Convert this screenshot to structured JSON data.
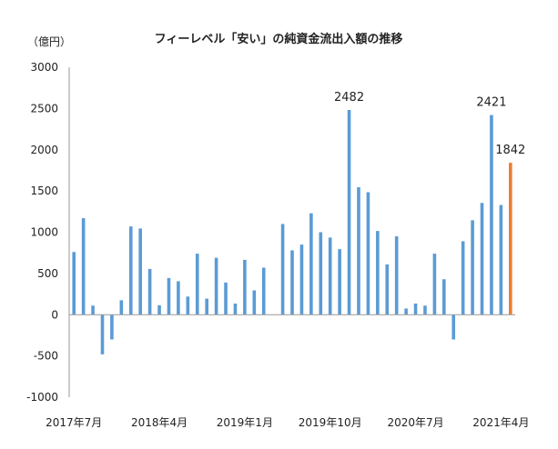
{
  "chart_data": {
    "type": "bar",
    "title": "フィーレベル「安い」の純資金流出入額の推移",
    "unit_label": "（億円）",
    "ylim": [
      -1000,
      3000
    ],
    "yticks": [
      -1000,
      -500,
      0,
      500,
      1000,
      1500,
      2000,
      2500,
      3000
    ],
    "ytick_labels": [
      "-1000",
      "-500",
      "0",
      "500",
      "1000",
      "1500",
      "2000",
      "2500",
      "3000"
    ],
    "xtick_labels": [
      {
        "label": "2017年7月",
        "index": 0
      },
      {
        "label": "2018年4月",
        "index": 9
      },
      {
        "label": "2019年1月",
        "index": 18
      },
      {
        "label": "2019年10月",
        "index": 27
      },
      {
        "label": "2020年7月",
        "index": 36
      },
      {
        "label": "2021年4月",
        "index": 45
      }
    ],
    "series": [
      {
        "name": "純資金流出入額",
        "color": "#5b9bd5",
        "highlight_color": "#ed7d31",
        "highlight_index": 46,
        "values": [
          760,
          1170,
          110,
          -480,
          -300,
          175,
          1070,
          1045,
          555,
          115,
          445,
          405,
          220,
          740,
          195,
          690,
          390,
          135,
          665,
          295,
          570,
          0,
          1100,
          780,
          850,
          1230,
          1000,
          935,
          795,
          2482,
          1545,
          1485,
          1015,
          610,
          950,
          75,
          135,
          110,
          740,
          430,
          -300,
          890,
          1145,
          1355,
          2421,
          1330,
          1842
        ]
      }
    ],
    "data_labels": [
      {
        "index": 29,
        "text": "2482"
      },
      {
        "index": 44,
        "text": "2421"
      },
      {
        "index": 46,
        "text": "1842"
      }
    ],
    "grid": false,
    "legend": "none"
  }
}
